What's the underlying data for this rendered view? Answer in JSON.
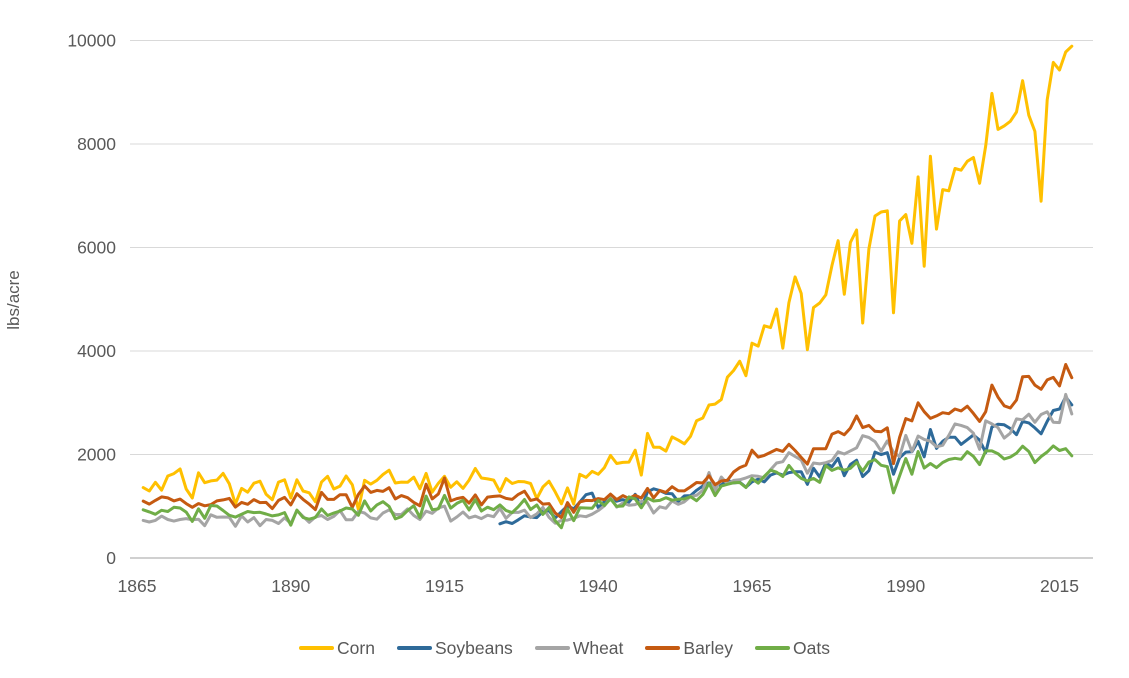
{
  "page": {
    "background": "#FFFFFF"
  },
  "chart_data": {
    "type": "line",
    "title": "",
    "xlabel": "",
    "ylabel": "lbs/acre",
    "units": "lbs/acre",
    "x_ticks": [
      1865,
      1890,
      1915,
      1940,
      1965,
      1990,
      2015
    ],
    "y_ticks": [
      0,
      2000,
      4000,
      6000,
      8000,
      10000
    ],
    "xlim": [
      1865,
      2020
    ],
    "ylim": [
      0,
      10000
    ],
    "grid": "horizontal",
    "legend_position": "bottom",
    "colors": {
      "background": "#FFFFFF",
      "grid": "#D9D9D9",
      "axis": "#C0C0C0",
      "tick_text": "#595959"
    },
    "series": [
      {
        "name": "Corn",
        "color": "#FFC000",
        "start_year": 1866,
        "end_year": 2017,
        "values": [
          1361,
          1294,
          1462,
          1310,
          1585,
          1630,
          1719,
          1333,
          1159,
          1646,
          1456,
          1490,
          1506,
          1635,
          1434,
          1042,
          1344,
          1271,
          1445,
          1484,
          1232,
          1126,
          1467,
          1512,
          1159,
          1512,
          1294,
          1260,
          1086,
          1467,
          1579,
          1333,
          1389,
          1585,
          1417,
          935,
          1501,
          1428,
          1501,
          1613,
          1697,
          1450,
          1467,
          1462,
          1562,
          1338,
          1635,
          1271,
          1445,
          1579,
          1366,
          1473,
          1344,
          1506,
          1730,
          1546,
          1529,
          1506,
          1282,
          1534,
          1439,
          1478,
          1473,
          1439,
          1148,
          1372,
          1484,
          1277,
          1047,
          1355,
          1042,
          1618,
          1557,
          1674,
          1618,
          1747,
          1982,
          1826,
          1848,
          1854,
          2083,
          1602,
          2408,
          2139,
          2139,
          2066,
          2341,
          2279,
          2206,
          2352,
          2654,
          2705,
          2957,
          2974,
          3063,
          3494,
          3623,
          3802,
          3522,
          4150,
          4094,
          4486,
          4452,
          4810,
          4054,
          4934,
          5432,
          5113,
          4026,
          4838,
          4928,
          5085,
          5656,
          6132,
          5096,
          6098,
          6339,
          4542,
          5975,
          6608,
          6686,
          6709,
          4738,
          6513,
          6636,
          6082,
          7364,
          5639,
          7762,
          6356,
          7118,
          7095,
          7526,
          7493,
          7666,
          7739,
          7241,
          7963,
          8977,
          8282,
          8350,
          8439,
          8618,
          9223,
          8557,
          8243,
          6894,
          8854,
          9576,
          9430,
          9778,
          9890
        ]
      },
      {
        "name": "Soybeans",
        "color": "#2E6A99",
        "start_year": 1924,
        "end_year": 2017,
        "values": [
          660,
          702,
          666,
          738,
          816,
          792,
          780,
          900,
          912,
          774,
          894,
          1008,
          948,
          1080,
          1224,
          1254,
          972,
          1092,
          1140,
          1098,
          1128,
          1080,
          1230,
          978,
          1278,
          1338,
          1302,
          1248,
          1242,
          1092,
          1200,
          1206,
          1308,
          1392,
          1452,
          1410,
          1410,
          1506,
          1452,
          1464,
          1368,
          1470,
          1524,
          1470,
          1602,
          1644,
          1602,
          1650,
          1668,
          1668,
          1422,
          1734,
          1566,
          1836,
          1764,
          1926,
          1590,
          1806,
          1890,
          1572,
          1686,
          2046,
          1998,
          2034,
          1620,
          1938,
          2046,
          2052,
          2256,
          1956,
          2484,
          2118,
          2256,
          2334,
          2334,
          2196,
          2286,
          2376,
          2280,
          2034,
          2532,
          2586,
          2574,
          2502,
          2382,
          2640,
          2610,
          2514,
          2400,
          2640,
          2850,
          2880,
          3114,
          2958
        ]
      },
      {
        "name": "Wheat",
        "color": "#A5A5A5",
        "start_year": 1866,
        "end_year": 2017,
        "values": [
          726,
          696,
          726,
          810,
          744,
          714,
          744,
          762,
          738,
          750,
          624,
          834,
          786,
          792,
          786,
          612,
          816,
          696,
          780,
          624,
          744,
          726,
          666,
          774,
          666,
          918,
          804,
          690,
          792,
          822,
          744,
          804,
          918,
          738,
          738,
          900,
          870,
          774,
          750,
          870,
          930,
          840,
          840,
          948,
          822,
          744,
          906,
          864,
          966,
          1002,
          714,
          792,
          888,
          774,
          810,
          762,
          828,
          798,
          960,
          768,
          882,
          882,
          924,
          780,
          852,
          978,
          786,
          672,
          726,
          732,
          768,
          816,
          798,
          846,
          918,
          1008,
          1170,
          984,
          1062,
          1020,
          1032,
          1092,
          1074,
          870,
          990,
          960,
          1104,
          1038,
          1086,
          1188,
          1212,
          1308,
          1650,
          1296,
          1566,
          1434,
          1500,
          1512,
          1548,
          1590,
          1578,
          1548,
          1704,
          1836,
          1860,
          2034,
          1962,
          1896,
          1638,
          1836,
          1818,
          1842,
          1884,
          2052,
          2010,
          2070,
          2130,
          2364,
          2328,
          2250,
          2064,
          2262,
          2046,
          1962,
          2370,
          2058,
          2358,
          2292,
          2256,
          2148,
          2178,
          2370,
          2592,
          2562,
          2520,
          2412,
          2100,
          2652,
          2592,
          2520,
          2316,
          2412,
          2688,
          2670,
          2778,
          2622,
          2772,
          2826,
          2622,
          2616,
          3162,
          2784
        ]
      },
      {
        "name": "Barley",
        "color": "#C55A11",
        "start_year": 1866,
        "end_year": 2017,
        "values": [
          1099,
          1042,
          1114,
          1181,
          1162,
          1104,
          1138,
          1051,
          979,
          1051,
          1008,
          1032,
          1104,
          1123,
          1152,
          984,
          1075,
          1037,
          1128,
          1070,
          1075,
          955,
          1114,
          1171,
          1027,
          1243,
          1133,
          1042,
          936,
          1267,
          1133,
          1133,
          1224,
          1224,
          979,
          1229,
          1392,
          1267,
          1306,
          1286,
          1358,
          1142,
          1205,
          1166,
          1075,
          1008,
          1426,
          1142,
          1238,
          1546,
          1104,
          1147,
          1171,
          1061,
          1219,
          1027,
          1176,
          1190,
          1200,
          1152,
          1133,
          1229,
          1291,
          1114,
          1142,
          1042,
          1051,
          869,
          782,
          1070,
          883,
          1085,
          1114,
          1109,
          1147,
          1128,
          1234,
          1128,
          1205,
          1147,
          1214,
          1157,
          1344,
          1162,
          1306,
          1267,
          1378,
          1301,
          1296,
          1373,
          1459,
          1450,
          1589,
          1416,
          1488,
          1502,
          1661,
          1747,
          1795,
          2083,
          1949,
          1982,
          2040,
          2098,
          2059,
          2198,
          2078,
          1944,
          1814,
          2112,
          2112,
          2112,
          2395,
          2443,
          2381,
          2510,
          2746,
          2520,
          2563,
          2448,
          2438,
          2515,
          1824,
          2333,
          2693,
          2650,
          3000,
          2827,
          2698,
          2746,
          2808,
          2789,
          2880,
          2842,
          2933,
          2794,
          2640,
          2827,
          3341,
          3110,
          2942,
          2899,
          3053,
          3504,
          3509,
          3341,
          3259,
          3442,
          3490,
          3326,
          3739,
          3485
        ]
      },
      {
        "name": "Oats",
        "color": "#70AD47",
        "start_year": 1866,
        "end_year": 2017,
        "values": [
          931,
          890,
          845,
          922,
          899,
          979,
          966,
          886,
          707,
          950,
          768,
          1014,
          1005,
          918,
          826,
          790,
          845,
          899,
          877,
          883,
          851,
          813,
          832,
          877,
          634,
          925,
          781,
          749,
          784,
          947,
          822,
          870,
          909,
          966,
          947,
          826,
          1104,
          909,
          1027,
          1088,
          998,
          758,
          800,
          915,
          1011,
          781,
          1197,
          934,
          950,
          1210,
          963,
          1056,
          1114,
          928,
          1126,
          909,
          982,
          934,
          1027,
          918,
          877,
          992,
          1130,
          938,
          1024,
          842,
          976,
          720,
          586,
          950,
          720,
          970,
          966,
          960,
          1110,
          1014,
          1142,
          998,
          1005,
          1181,
          1142,
          970,
          1158,
          1101,
          1114,
          1165,
          1117,
          1136,
          1142,
          1187,
          1107,
          1226,
          1443,
          1206,
          1389,
          1424,
          1453,
          1459,
          1363,
          1536,
          1446,
          1578,
          1696,
          1658,
          1574,
          1789,
          1638,
          1539,
          1488,
          1539,
          1462,
          1786,
          1693,
          1741,
          1696,
          1734,
          1850,
          1680,
          1856,
          1901,
          1792,
          1766,
          1258,
          1587,
          1923,
          1619,
          2058,
          1738,
          1827,
          1747,
          1846,
          1904,
          1926,
          1907,
          2054,
          1965,
          1805,
          2070,
          2070,
          2016,
          1914,
          1949,
          2026,
          2160,
          2058,
          1843,
          1962,
          2048,
          2166,
          2077,
          2112,
          1974
        ]
      }
    ]
  }
}
